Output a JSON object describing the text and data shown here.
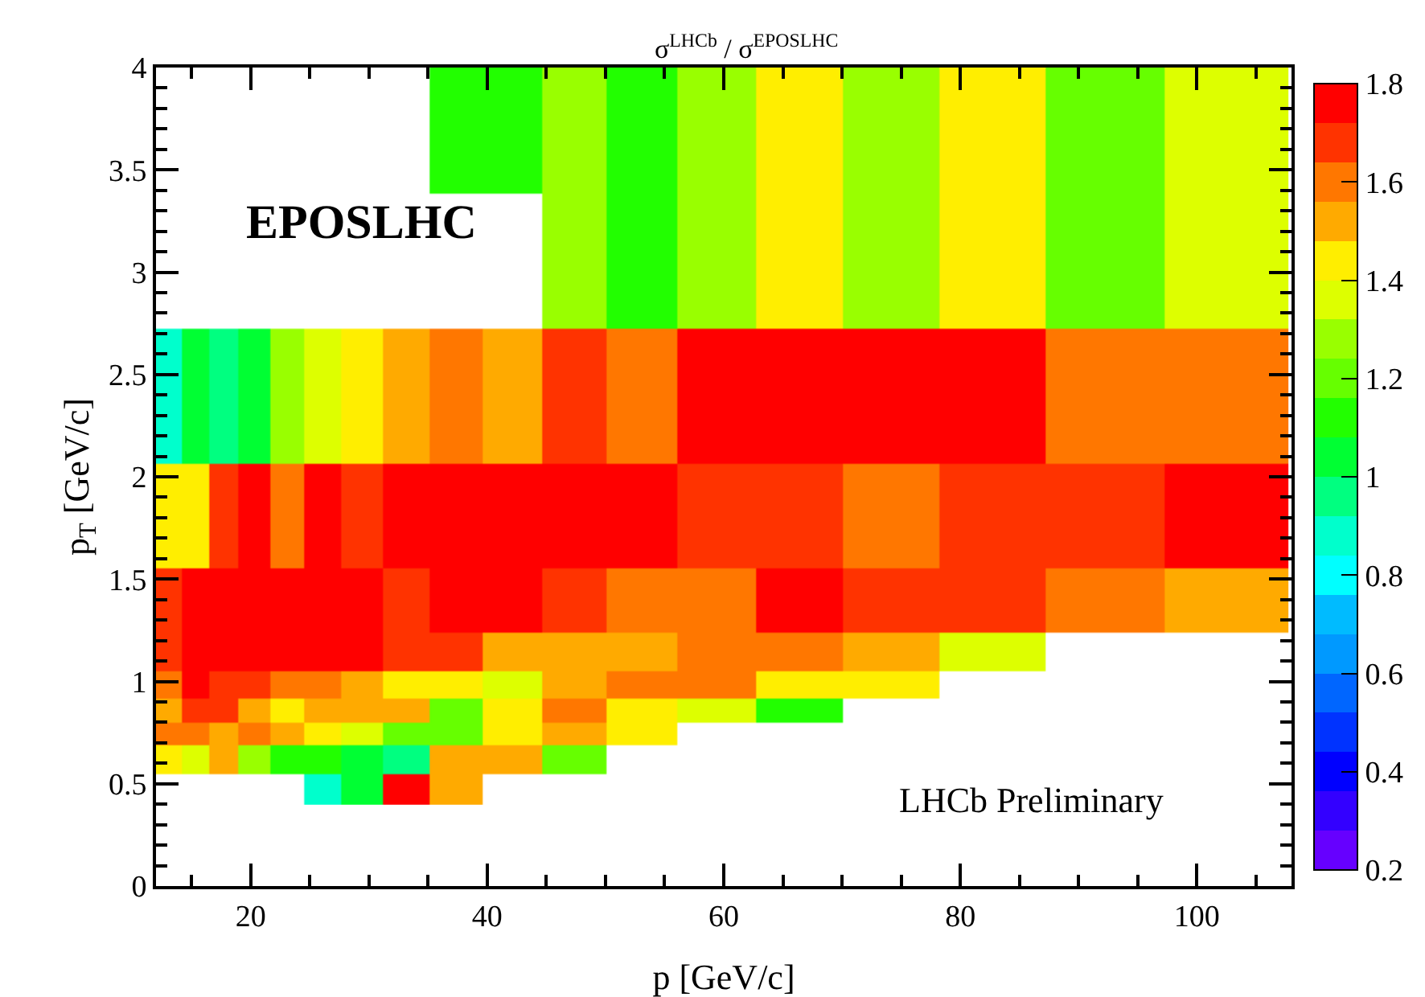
{
  "chart_data": {
    "type": "heatmap",
    "title": "σ$^{LHCb}$ / σ$^{EPOSLHC}$",
    "xlabel": "p [GeV/c]",
    "ylabel": "p$_{T}$ [GeV/c]",
    "x": [
      13,
      15.25,
      17.75,
      20.25,
      23,
      26,
      29.25,
      33,
      37.25,
      42,
      47.25,
      53,
      59.25,
      66.25,
      74,
      82.5,
      92,
      102.5
    ],
    "y": [
      3.7,
      3.075,
      2.375,
      1.75,
      1.35,
      1.125,
      0.975,
      0.85,
      0.75,
      0.625,
      0.475
    ],
    "cells": [
      [
        null,
        null,
        null,
        null,
        null,
        null,
        null,
        null,
        1.12,
        1.12,
        1.28,
        1.12,
        1.28,
        1.44,
        1.28,
        1.44,
        1.2,
        1.36
      ],
      [
        null,
        null,
        null,
        null,
        null,
        null,
        null,
        null,
        null,
        null,
        1.28,
        1.12,
        1.28,
        1.44,
        1.28,
        1.44,
        1.2,
        1.36
      ],
      [
        0.88,
        1.04,
        0.96,
        1.04,
        1.28,
        1.36,
        1.44,
        1.52,
        1.6,
        1.52,
        1.68,
        1.6,
        1.76,
        1.76,
        1.76,
        1.76,
        1.6,
        1.6
      ],
      [
        1.44,
        1.44,
        1.68,
        1.76,
        1.6,
        1.76,
        1.68,
        1.76,
        1.76,
        1.76,
        1.76,
        1.76,
        1.68,
        1.68,
        1.6,
        1.68,
        1.68,
        1.76
      ],
      [
        1.68,
        1.76,
        1.76,
        1.76,
        1.76,
        1.76,
        1.76,
        1.68,
        1.76,
        1.76,
        1.68,
        1.6,
        1.6,
        1.76,
        1.68,
        1.68,
        1.6,
        1.52
      ],
      [
        1.68,
        1.76,
        1.76,
        1.76,
        1.76,
        1.76,
        1.76,
        1.68,
        1.68,
        1.52,
        1.52,
        1.52,
        1.6,
        1.6,
        1.52,
        1.36,
        null,
        null
      ],
      [
        1.6,
        1.76,
        1.68,
        1.68,
        1.6,
        1.6,
        1.52,
        1.44,
        1.44,
        1.36,
        1.52,
        1.6,
        1.6,
        1.44,
        1.44,
        null,
        null,
        null
      ],
      [
        1.52,
        1.68,
        1.68,
        1.52,
        1.44,
        1.52,
        1.52,
        1.52,
        1.2,
        1.44,
        1.6,
        1.44,
        1.36,
        1.12,
        null,
        null,
        null,
        null
      ],
      [
        1.6,
        1.6,
        1.52,
        1.6,
        1.52,
        1.44,
        1.36,
        1.2,
        1.2,
        1.44,
        1.52,
        1.44,
        null,
        null,
        null,
        null,
        null,
        null
      ],
      [
        1.44,
        1.36,
        1.52,
        1.28,
        1.12,
        1.12,
        1.04,
        0.96,
        1.52,
        1.52,
        1.2,
        null,
        null,
        null,
        null,
        null,
        null,
        null
      ],
      [
        null,
        null,
        null,
        null,
        null,
        0.88,
        1.04,
        1.76,
        1.52,
        null,
        null,
        null,
        null,
        null,
        null,
        null,
        null,
        null
      ]
    ],
    "clim": [
      0.2,
      1.8
    ],
    "cticks": [
      0.2,
      0.4,
      0.6,
      0.8,
      1,
      1.2,
      1.4,
      1.6,
      1.8
    ],
    "xlim": [
      12,
      108
    ],
    "xticks": [
      20,
      40,
      60,
      80,
      100
    ],
    "ylim": [
      0,
      4
    ],
    "yticks": [
      0,
      0.5,
      1,
      1.5,
      2,
      2.5,
      3,
      3.5,
      4
    ],
    "annotations": [
      "EPOSLHC",
      "LHCb Preliminary"
    ]
  }
}
